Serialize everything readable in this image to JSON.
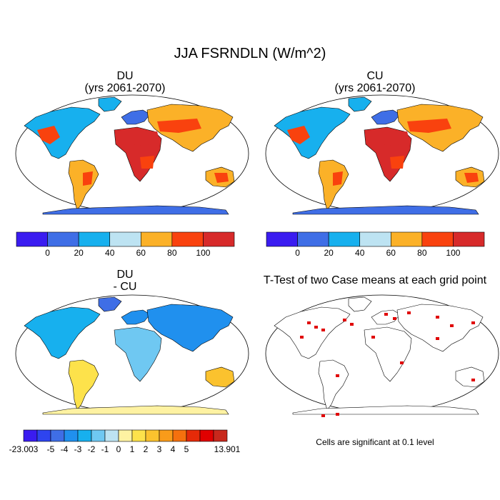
{
  "title": "JJA FSRNDLN (W/m^2)",
  "panels": [
    {
      "id": "du",
      "title": "DU",
      "subtitle": "(yrs 2061-2070)"
    },
    {
      "id": "cu",
      "title": "CU",
      "subtitle": "(yrs 2061-2070)"
    },
    {
      "id": "diff",
      "title": "DU",
      "subtitle": "- CU"
    },
    {
      "id": "ttest",
      "title": "T-Test of two Case means at each grid point",
      "subtitle": ""
    }
  ],
  "colorbar_main": {
    "colors": [
      "#3a1cf0",
      "#3f6ee6",
      "#17b0ee",
      "#bde3f2",
      "#fbb128",
      "#f9420e",
      "#d72a2a"
    ],
    "labels": [
      "0",
      "20",
      "40",
      "60",
      "80",
      "100"
    ]
  },
  "colorbar_diff": {
    "colors": [
      "#3a1cf0",
      "#2e44ef",
      "#3f6ee6",
      "#2090ee",
      "#17b0ee",
      "#6fc8f2",
      "#bde3f2",
      "#fef2a2",
      "#fde24b",
      "#fbc22e",
      "#f99b1a",
      "#f5700e",
      "#e52a08",
      "#e00000",
      "#c8281c"
    ],
    "labels": [
      "-23.003",
      "-5",
      "-4",
      "-3",
      "-2",
      "-1",
      "0",
      "1",
      "2",
      "3",
      "4",
      "5",
      "13.901"
    ]
  },
  "significance_note": "Cells are significant at 0.1 level",
  "significance_color": "#e00000",
  "ocean_color": "#ffffff"
}
